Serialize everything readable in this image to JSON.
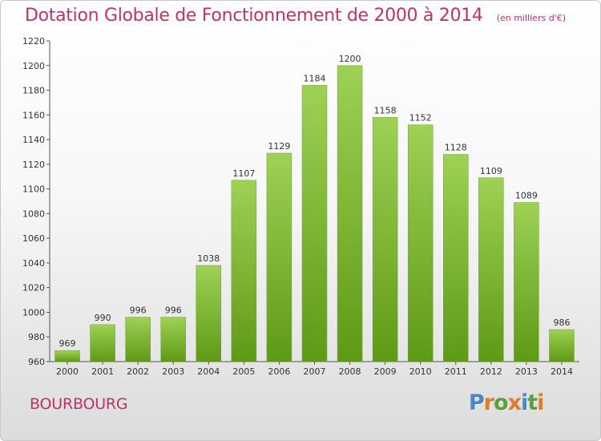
{
  "header": {
    "title": "Dotation Globale de Fonctionnement de 2000 à 2014",
    "subtitle": "(en milliers d'€)"
  },
  "footer": {
    "commune": "BOURBOURG",
    "logo": {
      "text": "Proxiti",
      "letters": [
        {
          "char": "P",
          "color": "#4a86c8"
        },
        {
          "char": "r",
          "color": "#e07a2c"
        },
        {
          "char": "o",
          "color": "#5aa03c"
        },
        {
          "char": "x",
          "color": "#e07a2c"
        },
        {
          "char": "i",
          "color": "#4a86c8"
        },
        {
          "char": "t",
          "color": "#5aa03c"
        },
        {
          "char": "i",
          "color": "#e07a2c"
        }
      ]
    }
  },
  "chart_data": {
    "type": "bar",
    "title": "Dotation Globale de Fonctionnement de 2000 à 2014",
    "subtitle": "(en milliers d'€)",
    "categories": [
      "2000",
      "2001",
      "2002",
      "2003",
      "2004",
      "2005",
      "2006",
      "2007",
      "2008",
      "2009",
      "2010",
      "2011",
      "2012",
      "2013",
      "2014"
    ],
    "values": [
      969,
      990,
      996,
      996,
      1038,
      1107,
      1129,
      1184,
      1200,
      1158,
      1152,
      1128,
      1109,
      1089,
      986
    ],
    "ylim": [
      960,
      1220
    ],
    "yticks": [
      960,
      980,
      1000,
      1020,
      1040,
      1060,
      1080,
      1100,
      1120,
      1140,
      1160,
      1180,
      1200,
      1220
    ],
    "grid": false,
    "colors": {
      "bar_top": "#9ed154",
      "bar_bottom": "#5e9a16",
      "axis": "#555555",
      "text": "#333333"
    }
  }
}
